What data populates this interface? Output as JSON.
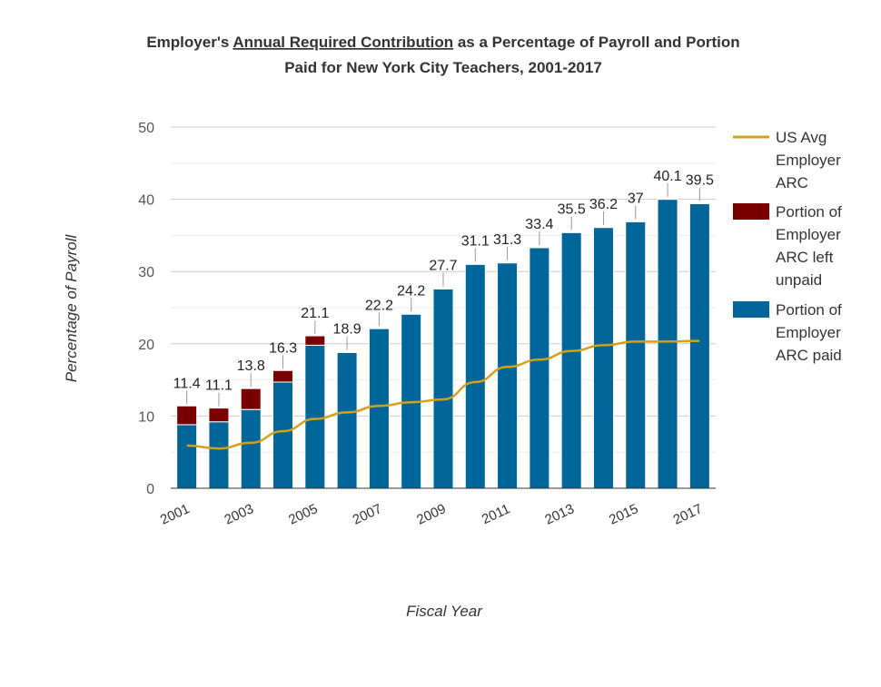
{
  "chart_data": {
    "type": "bar",
    "title_line1_pre": "Employer's ",
    "title_line1_link": "Annual Required Contribution",
    "title_line1_post": " as a Percentage of Payroll and Portion",
    "title_line2": "Paid for New York City Teachers, 2001-2017",
    "xlabel": "Fiscal Year",
    "ylabel": "Percentage of Payroll",
    "ylim": [
      0,
      50
    ],
    "yticks": [
      0,
      10,
      20,
      30,
      40,
      50
    ],
    "x": [
      2001,
      2002,
      2003,
      2004,
      2005,
      2006,
      2007,
      2008,
      2009,
      2010,
      2011,
      2012,
      2013,
      2014,
      2015,
      2016,
      2017
    ],
    "xtick_labels": [
      "2001",
      "2003",
      "2005",
      "2007",
      "2009",
      "2011",
      "2013",
      "2015",
      "2017"
    ],
    "totals": [
      11.4,
      11.1,
      13.8,
      16.3,
      21.1,
      18.9,
      22.2,
      24.2,
      27.7,
      31.1,
      31.3,
      33.4,
      35.5,
      36.2,
      37,
      40.1,
      39.5
    ],
    "total_labels": [
      "11.4",
      "11.1",
      "13.8",
      "16.3",
      "21.1",
      "18.9",
      "22.2",
      "24.2",
      "27.7",
      "31.1",
      "31.3",
      "33.4",
      "35.5",
      "36.2",
      "37",
      "40.1",
      "39.5"
    ],
    "stacked": true,
    "series": [
      {
        "name": "Portion of Employer ARC paid",
        "type": "bar",
        "color": "#006699",
        "values": [
          8.8,
          9.2,
          10.9,
          14.7,
          19.8,
          18.8,
          22.1,
          24.1,
          27.6,
          31.0,
          31.2,
          33.3,
          35.4,
          36.1,
          36.9,
          40.0,
          39.4
        ]
      },
      {
        "name": "Portion of Employer ARC left unpaid",
        "type": "bar",
        "color": "#7a0000",
        "values": [
          2.6,
          1.9,
          2.9,
          1.6,
          1.3,
          0.1,
          0.1,
          0.1,
          0.1,
          0.1,
          0.1,
          0.1,
          0.1,
          0.1,
          0.1,
          0.1,
          0.1
        ]
      },
      {
        "name": "US Avg Employer ARC",
        "type": "line",
        "color": "#d4a017",
        "values": [
          5.9,
          5.5,
          6.3,
          7.9,
          9.6,
          10.5,
          11.4,
          11.9,
          12.3,
          14.7,
          16.8,
          17.8,
          19.0,
          19.8,
          20.3,
          20.3,
          20.4
        ]
      }
    ],
    "legend_position": "right",
    "legend": [
      {
        "key": "line",
        "lines": [
          "US Avg",
          "Employer",
          "ARC"
        ]
      },
      {
        "key": "unpaid",
        "lines": [
          "Portion of",
          "Employer",
          "ARC left",
          "unpaid"
        ]
      },
      {
        "key": "paid",
        "lines": [
          "Portion of",
          "Employer",
          "ARC paid"
        ]
      }
    ],
    "grid": true
  }
}
